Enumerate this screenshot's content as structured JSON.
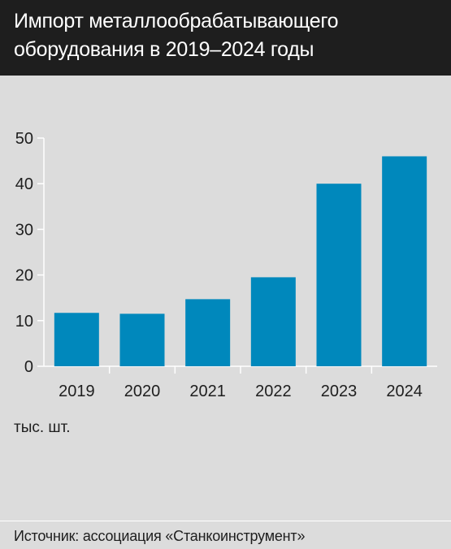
{
  "chart_data": {
    "type": "bar",
    "title": "Импорт металлообрабатывающего оборудования в 2019–2024 годы",
    "categories": [
      "2019",
      "2020",
      "2021",
      "2022",
      "2023",
      "2024"
    ],
    "values": [
      11.7,
      11.5,
      14.7,
      19.5,
      40,
      46
    ],
    "ylabel": "тыс. шт.",
    "xlabel": "",
    "ylim": [
      0,
      50
    ],
    "yticks": [
      0,
      10,
      20,
      30,
      40,
      50
    ],
    "grid": false,
    "bar_color": "#0088bc",
    "source": "Источник: ассоциация «Станкоинструмент»"
  }
}
